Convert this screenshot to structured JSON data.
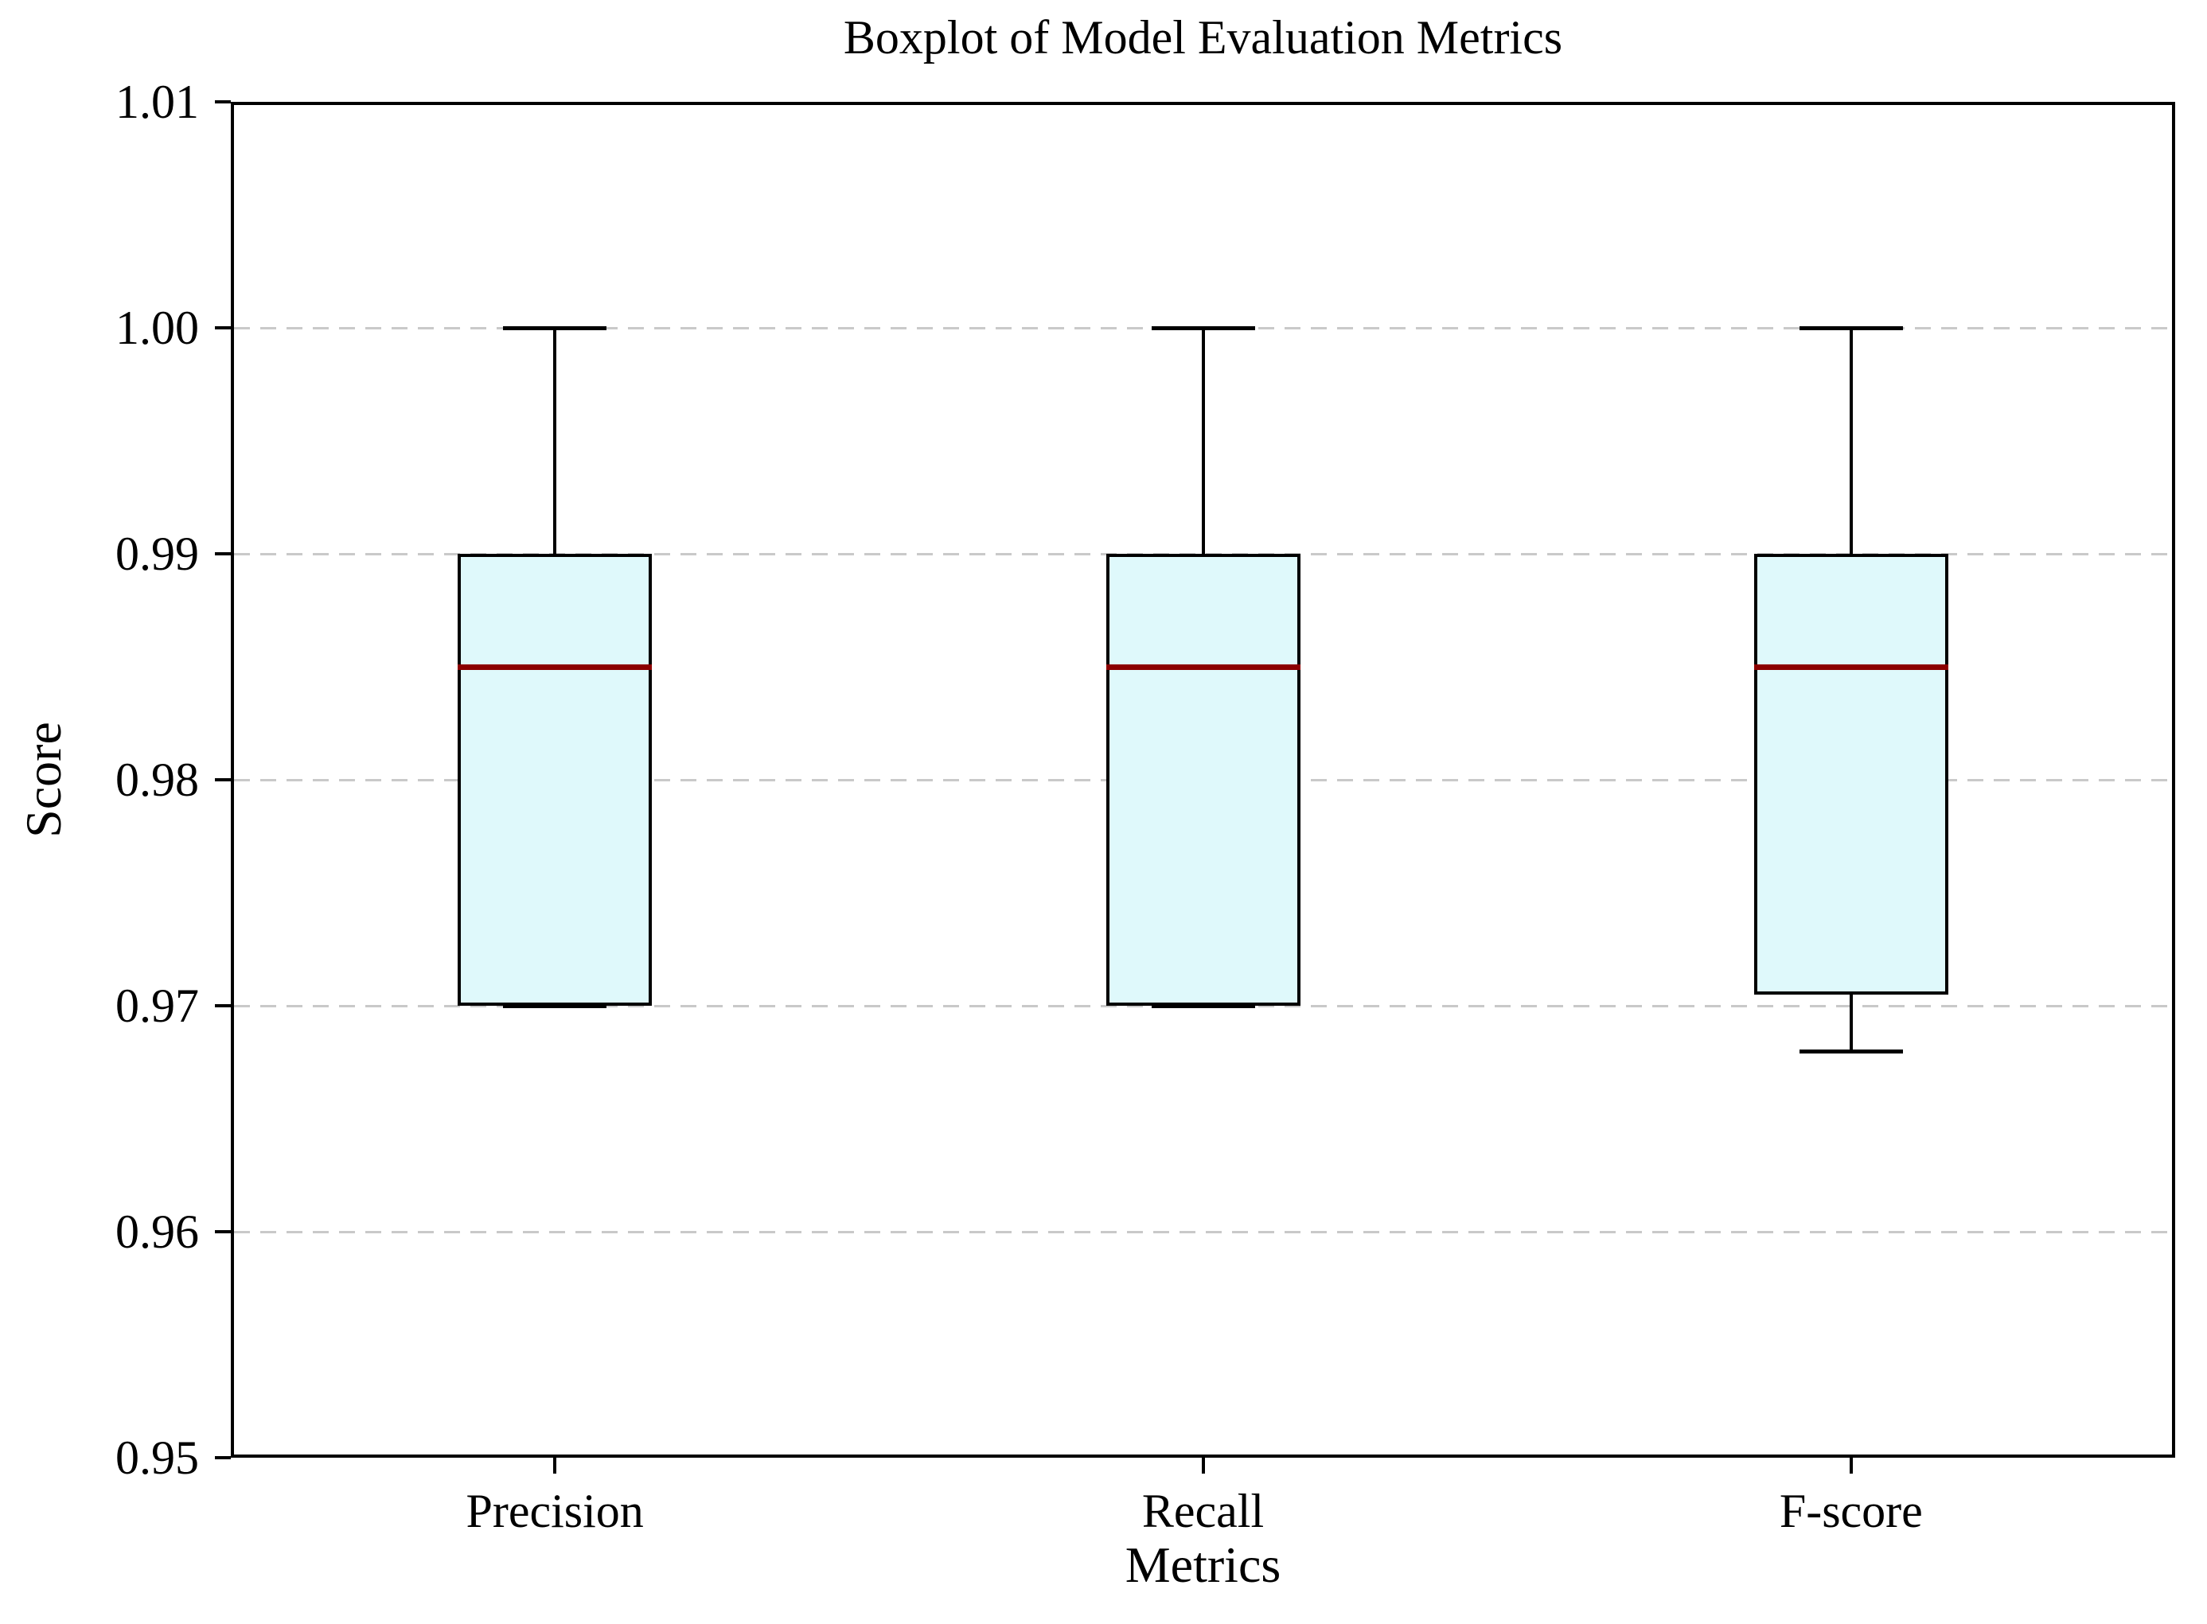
{
  "chart_data": {
    "type": "boxplot",
    "title": "Boxplot of Model Evaluation Metrics",
    "xlabel": "Metrics",
    "ylabel": "Score",
    "categories": [
      "Precision",
      "Recall",
      "F-score"
    ],
    "series": [
      {
        "name": "Precision",
        "whisker_low": 0.97,
        "q1": 0.97,
        "median": 0.985,
        "q3": 0.99,
        "whisker_high": 1.0
      },
      {
        "name": "Recall",
        "whisker_low": 0.97,
        "q1": 0.97,
        "median": 0.985,
        "q3": 0.99,
        "whisker_high": 1.0
      },
      {
        "name": "F-score",
        "whisker_low": 0.968,
        "q1": 0.9705,
        "median": 0.985,
        "q3": 0.99,
        "whisker_high": 1.0
      }
    ],
    "ylim": [
      0.95,
      1.01
    ],
    "ytick_labels": [
      "0.95",
      "0.96",
      "0.97",
      "0.98",
      "0.99",
      "1.00",
      "1.01"
    ],
    "ytick_values": [
      0.95,
      0.96,
      0.97,
      0.98,
      0.99,
      1.0,
      1.01
    ],
    "grid": "horizontal-dashed",
    "legend": "none",
    "colors": {
      "box_fill": "#dff9fb",
      "box_edge": "#000000",
      "median": "#8b0000",
      "whisker": "#000000",
      "gridline": "#c9c9c9",
      "background": "#ffffff",
      "text": "#000000"
    }
  }
}
